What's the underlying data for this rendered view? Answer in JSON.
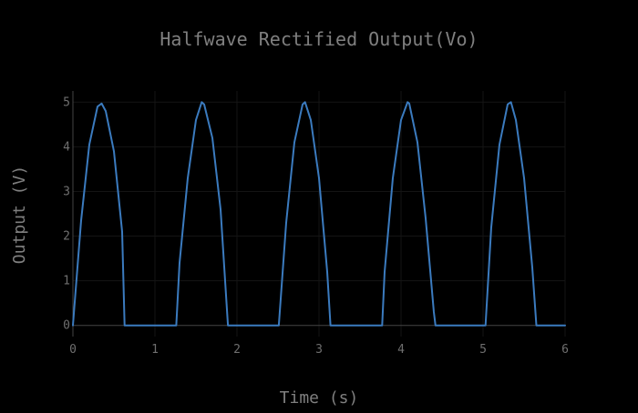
{
  "chart_data": {
    "type": "line",
    "title": "Halfwave Rectified Output(Vo)",
    "xlabel": "Time (s)",
    "ylabel": "Output (V)",
    "xlim": [
      0,
      6
    ],
    "ylim": [
      -0.25,
      5.25
    ],
    "xticks": [
      0,
      1,
      2,
      3,
      4,
      5,
      6
    ],
    "yticks": [
      0,
      1,
      2,
      3,
      4,
      5
    ],
    "grid": true,
    "series": [
      {
        "color": "#3b7bbf",
        "x": [
          0,
          0.1,
          0.2,
          0.3,
          0.35,
          0.4,
          0.5,
          0.6,
          0.63,
          0.7,
          0.8,
          0.9,
          1.0,
          1.1,
          1.2,
          1.26,
          1.3,
          1.4,
          1.5,
          1.57,
          1.6,
          1.7,
          1.8,
          1.89,
          1.9,
          2.0,
          2.1,
          2.2,
          2.3,
          2.4,
          2.51,
          2.6,
          2.7,
          2.8,
          2.83,
          2.9,
          3.0,
          3.1,
          3.14,
          3.2,
          3.3,
          3.4,
          3.5,
          3.6,
          3.7,
          3.77,
          3.8,
          3.9,
          4.0,
          4.08,
          4.1,
          4.2,
          4.3,
          4.4,
          4.42,
          4.5,
          4.6,
          4.7,
          4.8,
          4.9,
          5.0,
          5.03,
          5.1,
          5.2,
          5.3,
          5.34,
          5.4,
          5.5,
          5.6,
          5.65,
          5.7,
          5.8,
          5.9,
          6.0
        ],
        "y": [
          0,
          2.35,
          4.05,
          4.9,
          4.97,
          4.8,
          3.9,
          2.1,
          0,
          0,
          0,
          0,
          0,
          0,
          0,
          0,
          1.4,
          3.3,
          4.6,
          5.0,
          4.95,
          4.2,
          2.6,
          0,
          0,
          0,
          0,
          0,
          0,
          0,
          0,
          2.3,
          4.1,
          4.95,
          5.0,
          4.6,
          3.3,
          1.2,
          0,
          0,
          0,
          0,
          0,
          0,
          0,
          0,
          1.2,
          3.3,
          4.6,
          5.0,
          4.97,
          4.1,
          2.4,
          0.3,
          0,
          0,
          0,
          0,
          0,
          0,
          0,
          0,
          2.2,
          4.05,
          4.95,
          5.0,
          4.6,
          3.3,
          1.3,
          0,
          0,
          0,
          0,
          0
        ]
      }
    ]
  }
}
